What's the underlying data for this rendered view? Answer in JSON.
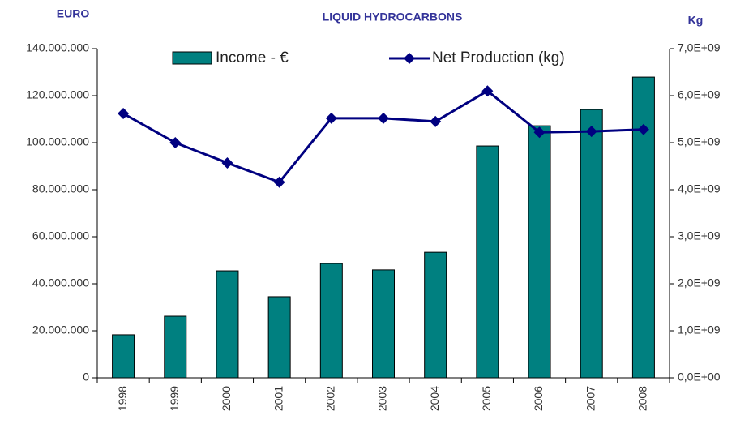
{
  "chart_data": {
    "type": "bar_line",
    "title": "LIQUID HYDROCARBONS",
    "y_label": "EURO",
    "y2_label": "Kg",
    "categories": [
      "1998",
      "1999",
      "2000",
      "2001",
      "2002",
      "2003",
      "2004",
      "2005",
      "2006",
      "2007",
      "2008"
    ],
    "series": [
      {
        "name": "Income - €",
        "color": "#008080",
        "type": "bar",
        "axis": "y",
        "values": [
          18300000,
          26200000,
          45500000,
          34500000,
          48600000,
          45900000,
          53400000,
          98600000,
          107200000,
          114100000,
          127900000
        ]
      },
      {
        "name": "Net Production (kg)",
        "color": "#000080",
        "type": "line",
        "axis": "y2",
        "values": [
          5620000000,
          5000000000,
          4570000000,
          4160000000,
          5520000000,
          5520000000,
          5450000000,
          6100000000,
          5220000000,
          5240000000,
          5280000000
        ]
      }
    ],
    "ylim": [
      0,
      140000000
    ],
    "yticks": [
      0,
      {
        "value": 20000000,
        "label": "20.000.000"
      },
      {
        "value": 40000000,
        "label": "40.000.000"
      },
      {
        "value": 60000000,
        "label": "60.000.000"
      },
      {
        "value": 80000000,
        "label": "80.000.000"
      },
      {
        "value": 100000000,
        "label": "100.000.000"
      },
      {
        "value": 120000000,
        "label": "120.000.000"
      },
      {
        "value": 140000000,
        "label": "140.000.000"
      }
    ],
    "y2lim": [
      0,
      7000000000
    ],
    "y2ticks": [
      {
        "value": 0,
        "label": "0,0E+00"
      },
      {
        "value": 1000000000,
        "label": "1,0E+09"
      },
      {
        "value": 2000000000,
        "label": "2,0E+09"
      },
      {
        "value": 3000000000,
        "label": "3,0E+09"
      },
      {
        "value": 4000000000,
        "label": "4,0E+09"
      },
      {
        "value": 5000000000,
        "label": "5,0E+09"
      },
      {
        "value": 6000000000,
        "label": "6,0E+09"
      },
      {
        "value": 7000000000,
        "label": "7,0E+09"
      }
    ],
    "legend": "top"
  }
}
